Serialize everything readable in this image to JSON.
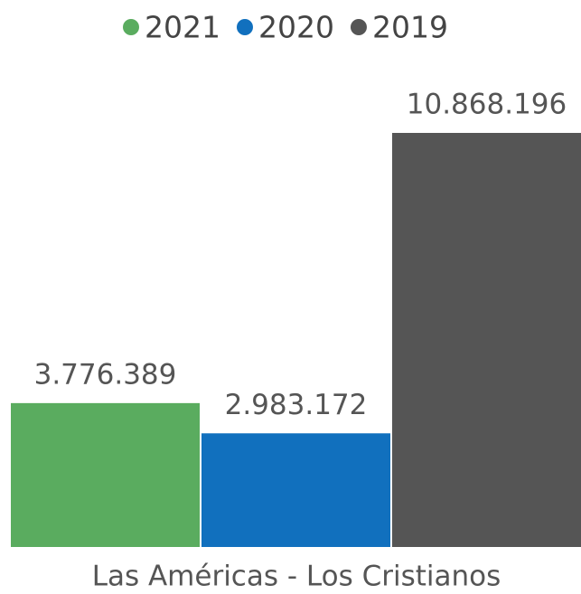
{
  "chart_data": {
    "type": "bar",
    "categories": [
      "Las Américas - Los Cristianos"
    ],
    "series": [
      {
        "name": "2021",
        "color": "#5aac5f",
        "values": [
          3776389
        ],
        "value_labels": [
          "3.776.389"
        ]
      },
      {
        "name": "2020",
        "color": "#1170be",
        "values": [
          2983172
        ],
        "value_labels": [
          "2.983.172"
        ]
      },
      {
        "name": "2019",
        "color": "#555555",
        "values": [
          10868196
        ],
        "value_labels": [
          "10.868.196"
        ]
      }
    ],
    "ylim": [
      0,
      10868196
    ],
    "legend": "top"
  }
}
